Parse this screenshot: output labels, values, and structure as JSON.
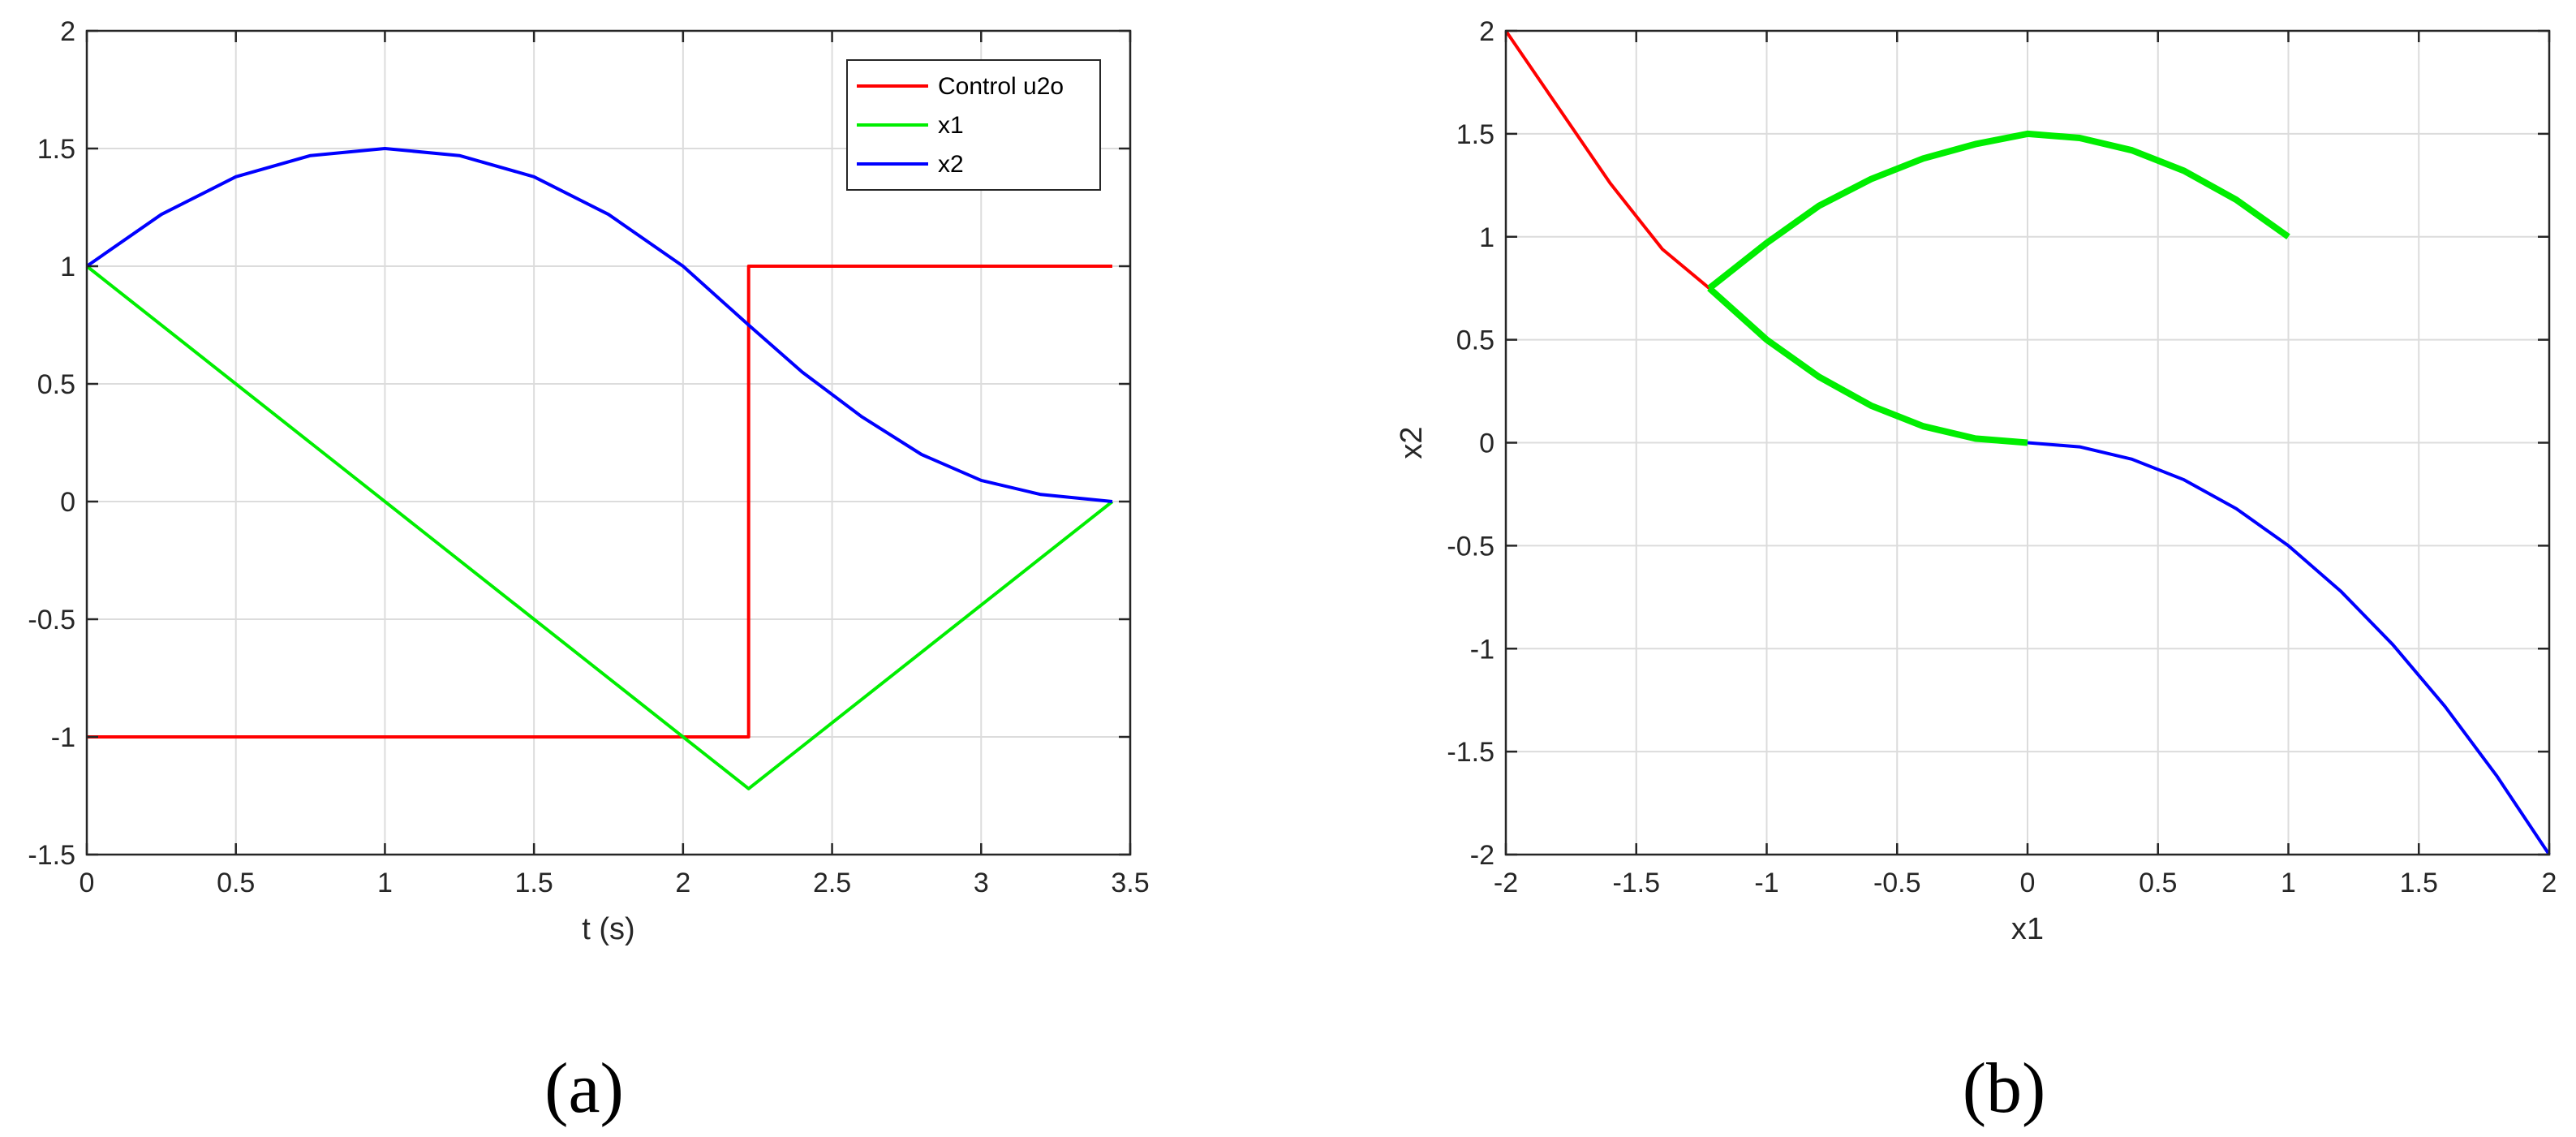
{
  "colors": {
    "red": "#ff0000",
    "green": "#00ee00",
    "blue": "#0000ff",
    "grid": "#dcdcdc",
    "axis": "#262626"
  },
  "chart_data": [
    {
      "type": "line",
      "caption": "(a)",
      "xlabel": "t (s)",
      "ylabel": "",
      "xlim": [
        0,
        3.5
      ],
      "ylim": [
        -1.5,
        2
      ],
      "xticks": [
        0,
        0.5,
        1,
        1.5,
        2,
        2.5,
        3,
        3.5
      ],
      "yticks": [
        -1.5,
        -1,
        -0.5,
        0,
        0.5,
        1,
        1.5,
        2
      ],
      "xtick_labels": [
        "0",
        "0.5",
        "1",
        "1.5",
        "2",
        "2.5",
        "3",
        "3.5"
      ],
      "ytick_labels": [
        "-1.5",
        "-1",
        "-0.5",
        "0",
        "0.5",
        "1",
        "1.5",
        "2"
      ],
      "grid": true,
      "legend_position": "top-right",
      "series": [
        {
          "name": "Control u2o",
          "color": "#ff0000",
          "x": [
            0,
            2.22,
            2.22,
            3.44
          ],
          "y": [
            -1,
            -1,
            1,
            1
          ]
        },
        {
          "name": "x1",
          "color": "#00ee00",
          "x": [
            0,
            2.22,
            3.44
          ],
          "y": [
            1,
            -1.22,
            0
          ]
        },
        {
          "name": "x2",
          "color": "#0000ff",
          "x": [
            0,
            0.25,
            0.5,
            0.75,
            1,
            1.25,
            1.5,
            1.75,
            2,
            2.22,
            2.4,
            2.6,
            2.8,
            3.0,
            3.2,
            3.44
          ],
          "y": [
            1,
            1.22,
            1.38,
            1.47,
            1.5,
            1.47,
            1.38,
            1.22,
            1.0,
            0.75,
            0.55,
            0.36,
            0.2,
            0.09,
            0.03,
            0
          ]
        }
      ]
    },
    {
      "type": "line",
      "caption": "(b)",
      "xlabel": "x1",
      "ylabel": "x2",
      "xlim": [
        -2,
        2
      ],
      "ylim": [
        -2,
        2
      ],
      "xticks": [
        -2,
        -1.5,
        -1,
        -0.5,
        0,
        0.5,
        1,
        1.5,
        2
      ],
      "yticks": [
        -2,
        -1.5,
        -1,
        -0.5,
        0,
        0.5,
        1,
        1.5,
        2
      ],
      "xtick_labels": [
        "-2",
        "-1.5",
        "-1",
        "-0.5",
        "0",
        "0.5",
        "1",
        "1.5",
        "2"
      ],
      "ytick_labels": [
        "-2",
        "-1.5",
        "-1",
        "-0.5",
        "0",
        "0.5",
        "1",
        "1.5",
        "2"
      ],
      "grid": true,
      "series": [
        {
          "color": "#ff0000",
          "width": "thin",
          "x": [
            -2,
            -1.8,
            -1.6,
            -1.4,
            -1.22
          ],
          "y": [
            2,
            1.63,
            1.26,
            0.94,
            0.75
          ]
        },
        {
          "color": "#0000ff",
          "width": "thin",
          "x": [
            0,
            0.2,
            0.4,
            0.6,
            0.8,
            1.0,
            1.2,
            1.4,
            1.6,
            1.8,
            2.0
          ],
          "y": [
            0,
            -0.02,
            -0.08,
            -0.18,
            -0.32,
            -0.5,
            -0.72,
            -0.98,
            -1.28,
            -1.62,
            -2.0
          ]
        },
        {
          "color": "#00ee00",
          "width": "thick",
          "x": [
            -1.22,
            -1.0,
            -0.8,
            -0.6,
            -0.4,
            -0.2,
            0
          ],
          "y": [
            0.75,
            0.5,
            0.32,
            0.18,
            0.08,
            0.02,
            0
          ]
        },
        {
          "color": "#00ee00",
          "width": "thick",
          "x": [
            -1.22,
            -1.0,
            -0.8,
            -0.6,
            -0.4,
            -0.2,
            0,
            0.2,
            0.4,
            0.6,
            0.8,
            1.0
          ],
          "y": [
            0.75,
            0.97,
            1.15,
            1.28,
            1.38,
            1.45,
            1.5,
            1.48,
            1.42,
            1.32,
            1.18,
            1.0
          ]
        }
      ]
    }
  ]
}
